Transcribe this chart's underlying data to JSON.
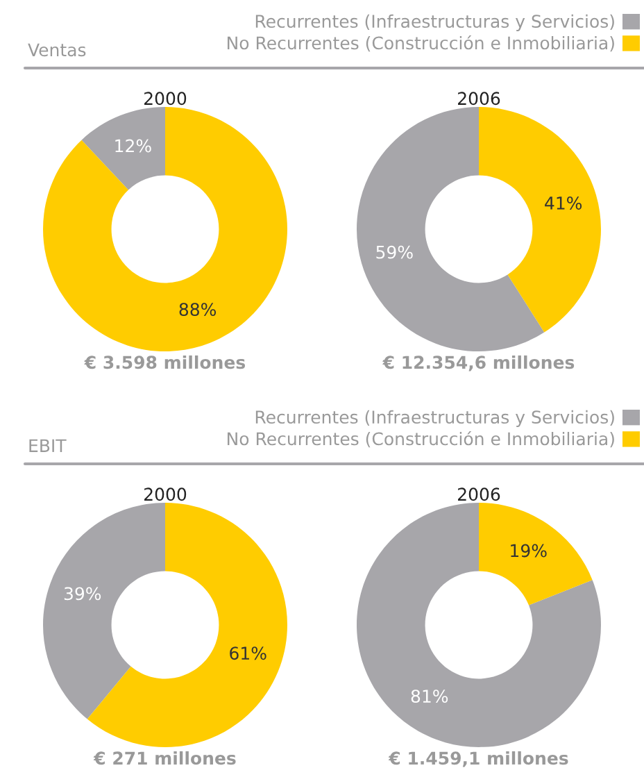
{
  "chart_data": [
    {
      "type": "donut",
      "subtitle": "Ventas",
      "categories": [
        "Recurrentes (Infraestructuras y Servicios)",
        "No Recurrentes (Construcción e Inmobiliaria)"
      ],
      "colors": [
        "#a7a6aa",
        "#ffcc00"
      ],
      "legend": "top right",
      "series": [
        {
          "name": "2000",
          "values": [
            12,
            88
          ],
          "value_labels": [
            "12%",
            "88%"
          ]
        },
        {
          "name": "2006",
          "values": [
            59,
            41
          ],
          "value_labels": [
            "59%",
            "41%"
          ]
        }
      ],
      "annotations": [
        "€ 3.598 millones",
        "€ 12.354,6 millones"
      ]
    },
    {
      "type": "donut",
      "subtitle": "EBIT",
      "categories": [
        "Recurrentes (Infraestructuras y Servicios)",
        "No Recurrentes (Construcción e Inmobiliaria)"
      ],
      "colors": [
        "#a7a6aa",
        "#ffcc00"
      ],
      "legend": "top right",
      "series": [
        {
          "name": "2000",
          "values": [
            39,
            61
          ],
          "value_labels": [
            "39%",
            "61%"
          ]
        },
        {
          "name": "2006",
          "values": [
            81,
            19
          ],
          "value_labels": [
            "81%",
            "19%"
          ]
        }
      ],
      "annotations": [
        "€ 271 millones",
        "€ 1.459,1 millones"
      ]
    }
  ]
}
